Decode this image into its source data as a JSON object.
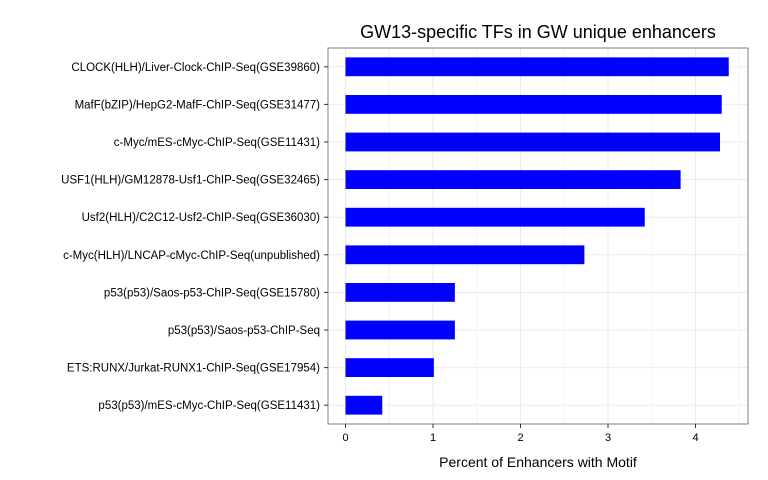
{
  "chart_data": {
    "type": "bar",
    "orientation": "horizontal",
    "title": "GW13-specific TFs in GW unique enhancers",
    "xlabel": "Percent of Enhancers with Motif",
    "ylabel": "",
    "categories": [
      "CLOCK(HLH)/Liver-Clock-ChIP-Seq(GSE39860)",
      "MafF(bZIP)/HepG2-MafF-ChIP-Seq(GSE31477)",
      "c-Myc/mES-cMyc-ChIP-Seq(GSE11431)",
      "USF1(HLH)/GM12878-Usf1-ChIP-Seq(GSE32465)",
      "Usf2(HLH)/C2C12-Usf2-ChIP-Seq(GSE36030)",
      "c-Myc(HLH)/LNCAP-cMyc-ChIP-Seq(unpublished)",
      "p53(p53)/Saos-p53-ChIP-Seq(GSE15780)",
      "p53(p53)/Saos-p53-ChIP-Seq",
      "ETS:RUNX/Jurkat-RUNX1-ChIP-Seq(GSE17954)",
      "p53(p53)/mES-cMyc-ChIP-Seq(GSE11431)"
    ],
    "values": [
      4.38,
      4.3,
      4.28,
      3.83,
      3.42,
      2.73,
      1.25,
      1.25,
      1.01,
      0.42
    ],
    "xlim": [
      -0.2,
      4.6
    ],
    "xticks": [
      0,
      1,
      2,
      3,
      4
    ],
    "bar_color": "#0000ff",
    "grid": true,
    "grid_color": "#ebebeb",
    "panel_border_color": "#7f7f7f",
    "legend": "none"
  }
}
